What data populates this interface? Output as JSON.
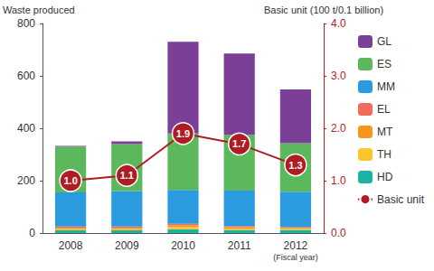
{
  "chart_data": {
    "type": "bar",
    "stacked": true,
    "categories": [
      "2008",
      "2009",
      "2010",
      "2011",
      "2012"
    ],
    "annotation": "(Fiscal year)",
    "y_label": "Waste produced",
    "y2_label": "Basic unit (100 t/0.1 billion)",
    "ylim": [
      0,
      800
    ],
    "yticks": [
      0,
      200,
      400,
      600,
      800
    ],
    "y2lim": [
      0,
      4
    ],
    "y2ticks": [
      {
        "value": 0,
        "label": "0.0"
      },
      {
        "value": 1,
        "label": "1.0"
      },
      {
        "value": 2,
        "label": "2.0"
      },
      {
        "value": 3,
        "label": "3.0"
      },
      {
        "value": 4,
        "label": "4.0"
      }
    ],
    "grid": false,
    "legend": "right",
    "series": [
      {
        "name": "HD",
        "color": "#1bb3a0",
        "values": [
          10,
          10,
          15,
          12,
          12
        ]
      },
      {
        "name": "TH",
        "color": "#fbc52c",
        "values": [
          5,
          5,
          8,
          5,
          5
        ]
      },
      {
        "name": "MT",
        "color": "#f7941d",
        "values": [
          5,
          5,
          7,
          5,
          3
        ]
      },
      {
        "name": "EL",
        "color": "#f26a5a",
        "values": [
          5,
          5,
          5,
          5,
          3
        ]
      },
      {
        "name": "MM",
        "color": "#2b9be0",
        "values": [
          130,
          135,
          130,
          135,
          135
        ]
      },
      {
        "name": "ES",
        "color": "#5cb85c",
        "values": [
          175,
          180,
          215,
          213,
          185
        ]
      },
      {
        "name": "GL",
        "color": "#7b3f98",
        "values": [
          3,
          10,
          350,
          310,
          205
        ]
      },
      {
        "name": "Basic unit",
        "type": "line",
        "axis": "y2",
        "color": "#b01c24",
        "marker": "circle",
        "data_labels": true,
        "values": [
          1.0,
          1.1,
          1.9,
          1.7,
          1.3
        ],
        "value_labels": [
          "1.0",
          "1.1",
          "1.9",
          "1.7",
          "1.3"
        ]
      }
    ]
  }
}
